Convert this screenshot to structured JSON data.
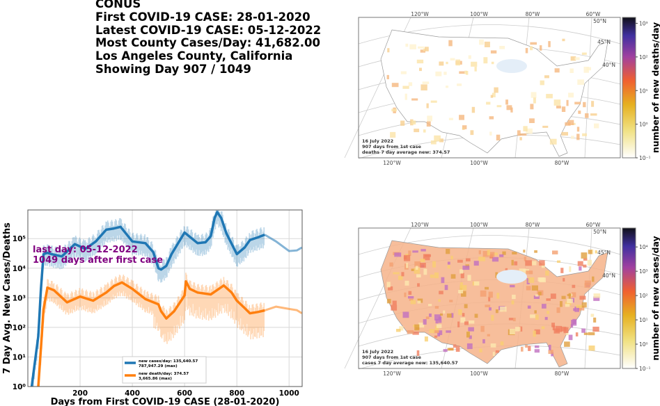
{
  "info": {
    "lines": [
      "CONUS",
      "First COVID-19 CASE: 28-01-2020",
      "Latest COVID-19 CASE: 05-12-2022",
      "Most County Cases/Day: 41,682.00",
      "Los Angeles County, California",
      "Showing Day 907 / 1049"
    ]
  },
  "chart_data": [
    {
      "type": "line",
      "xlabel": "Days from First COVID-19 CASE (28-01-2020)",
      "ylabel": "7 Day Avg. New Cases/Deaths",
      "yscale": "log",
      "xlim": [
        0,
        1050
      ],
      "ylim": [
        1,
        930000
      ],
      "grid": true,
      "xticks": [
        "200",
        "400",
        "600",
        "800",
        "1000"
      ],
      "xtick_values": [
        200,
        400,
        600,
        800,
        1000
      ],
      "yticks": [
        "10⁰",
        "10¹",
        "10²",
        "10³",
        "10⁴",
        "10⁵"
      ],
      "ytick_values": [
        1,
        10,
        100,
        1000,
        10000,
        100000
      ],
      "annotation": [
        "last day: 05-12-2022",
        "1049 days after first case"
      ],
      "annotation_color": "#800080",
      "legend_placement": "lower-center",
      "current_day": 907,
      "series": [
        {
          "name": "new cases/day: 135,640.57",
          "legend_sub": "787,947.29 (max)",
          "color": "#1f77b4",
          "x": [
            15,
            25,
            40,
            50,
            60,
            75,
            90,
            130,
            180,
            220,
            260,
            300,
            330,
            355,
            400,
            450,
            480,
            500,
            510,
            530,
            550,
            600,
            650,
            680,
            700,
            715,
            725,
            740,
            760,
            800,
            830,
            850,
            880,
            907
          ],
          "y": [
            1,
            5,
            50,
            2000,
            30000,
            33000,
            30000,
            25000,
            65000,
            45000,
            80000,
            200000,
            220000,
            250000,
            80000,
            70000,
            35000,
            10000,
            9000,
            12000,
            30000,
            160000,
            70000,
            75000,
            120000,
            500000,
            790000,
            500000,
            150000,
            30000,
            50000,
            90000,
            110000,
            135640
          ],
          "future_x": [
            907,
            950,
            1000,
            1030,
            1049
          ],
          "future_y": [
            135640,
            80000,
            38000,
            40000,
            50000
          ]
        },
        {
          "name": "new death/day: 374.57",
          "legend_sub": "3,665.86 (max)",
          "color": "#ff7f0e",
          "x": [
            40,
            50,
            60,
            75,
            100,
            150,
            200,
            250,
            300,
            330,
            360,
            400,
            450,
            500,
            510,
            530,
            560,
            600,
            605,
            620,
            650,
            700,
            750,
            780,
            800,
            830,
            850,
            880,
            907
          ],
          "y": [
            1,
            20,
            400,
            2200,
            1800,
            700,
            1100,
            800,
            1500,
            2500,
            3300,
            2000,
            900,
            600,
            350,
            200,
            350,
            1200,
            3600,
            2000,
            1500,
            1300,
            2600,
            1500,
            800,
            450,
            300,
            330,
            375
          ],
          "future_x": [
            907,
            950,
            1000,
            1030,
            1049
          ],
          "future_y": [
            375,
            500,
            420,
            380,
            300
          ]
        }
      ]
    },
    {
      "type": "heatmap",
      "subtype": "choropleth-map",
      "colorbar_label": "number of new deaths/day",
      "colorbar_ticks": [
        "10⁻¹",
        "10⁰",
        "10¹",
        "10²",
        "10³"
      ],
      "colorbar_range": [
        0.1,
        1500
      ],
      "colormap": "CMRmap_r",
      "lon_labels_top": [
        "120°W",
        "100°W",
        "80°W",
        "60°W"
      ],
      "lon_labels_bottom": [
        "120°W",
        "100°W",
        "80°W"
      ],
      "lat_labels": [
        "50°N",
        "45°N",
        "40°N"
      ],
      "annotation": [
        "16 July 2022",
        "907 days from 1st case",
        "deaths 7 day average new: 374.57"
      ]
    },
    {
      "type": "heatmap",
      "subtype": "choropleth-map",
      "colorbar_label": "number of new cases/day",
      "colorbar_ticks": [
        "10⁻¹",
        "10⁰",
        "10¹",
        "10²",
        "10³",
        "10⁴"
      ],
      "colorbar_range": [
        0.1,
        60000
      ],
      "colormap": "CMRmap_r",
      "lon_labels_top": [
        "120°W",
        "100°W",
        "80°W",
        "60°W"
      ],
      "lon_labels_bottom": [
        "120°W",
        "100°W",
        "80°W"
      ],
      "lat_labels": [
        "50°N",
        "45°N",
        "40°N"
      ],
      "annotation": [
        "16 July 2022",
        "907 days from 1st case",
        "cases 7 day average new: 135,640.57"
      ]
    }
  ]
}
